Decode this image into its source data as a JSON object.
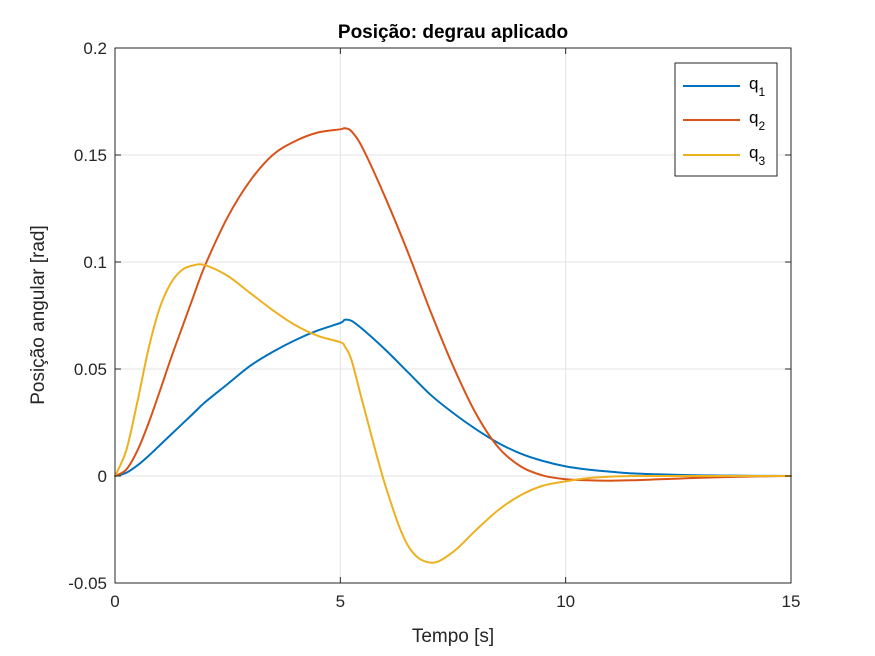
{
  "chart_data": {
    "type": "line",
    "title": "Posição: degrau aplicado",
    "xlabel": "Tempo [s]",
    "ylabel": "Posição angular [rad]",
    "xlim": [
      0,
      15
    ],
    "ylim": [
      -0.05,
      0.2
    ],
    "xticks": [
      0,
      5,
      10,
      15
    ],
    "xtick_labels": [
      "0",
      "5",
      "10",
      "15"
    ],
    "yticks": [
      -0.05,
      0,
      0.05,
      0.1,
      0.15,
      0.2
    ],
    "ytick_labels": [
      "-0.05",
      "0",
      "0.05",
      "0.1",
      "0.15",
      "0.2"
    ],
    "grid": true,
    "legend_position": "top-right",
    "series": [
      {
        "name": "q1",
        "name_base": "q",
        "name_sub": "1",
        "color": "#0072BD",
        "x": [
          0,
          0.25,
          0.5,
          0.75,
          1,
          1.25,
          1.5,
          1.75,
          2,
          2.5,
          3,
          3.5,
          4,
          4.5,
          5,
          5.1,
          5.25,
          5.5,
          6,
          6.5,
          7,
          7.5,
          8,
          8.5,
          9,
          9.5,
          10,
          10.5,
          11,
          11.5,
          12,
          12.5,
          13,
          13.5,
          14,
          14.5,
          15
        ],
        "y": [
          0,
          0.0015,
          0.005,
          0.0095,
          0.0145,
          0.0195,
          0.0245,
          0.0295,
          0.0345,
          0.043,
          0.0515,
          0.058,
          0.0635,
          0.068,
          0.0715,
          0.073,
          0.0725,
          0.0685,
          0.059,
          0.0485,
          0.038,
          0.0295,
          0.022,
          0.0155,
          0.0105,
          0.007,
          0.0045,
          0.003,
          0.002,
          0.0012,
          0.0008,
          0.0005,
          0.0003,
          0.0002,
          0.0001,
          5e-05,
          0
        ]
      },
      {
        "name": "q2",
        "name_base": "q",
        "name_sub": "2",
        "color": "#D95319",
        "x": [
          0,
          0.25,
          0.5,
          0.75,
          1,
          1.25,
          1.5,
          1.75,
          2,
          2.5,
          3,
          3.5,
          4,
          4.5,
          5,
          5.1,
          5.25,
          5.5,
          6,
          6.5,
          7,
          7.5,
          8,
          8.5,
          9,
          9.5,
          10,
          10.5,
          11,
          11.5,
          12,
          12.5,
          13,
          13.5,
          14,
          14.5,
          15
        ],
        "y": [
          0,
          0.003,
          0.012,
          0.025,
          0.04,
          0.0555,
          0.07,
          0.0845,
          0.0985,
          0.121,
          0.138,
          0.15,
          0.1565,
          0.1605,
          0.162,
          0.1625,
          0.161,
          0.153,
          0.13,
          0.1045,
          0.077,
          0.0515,
          0.0295,
          0.0135,
          0.0045,
          0.0002,
          -0.0015,
          -0.002,
          -0.0022,
          -0.002,
          -0.0016,
          -0.0012,
          -0.0008,
          -0.0005,
          -0.0003,
          -0.0001,
          0
        ]
      },
      {
        "name": "q3",
        "name_base": "q",
        "name_sub": "3",
        "color": "#EDB120",
        "x": [
          0,
          0.25,
          0.5,
          0.75,
          1,
          1.25,
          1.5,
          1.75,
          2,
          2.5,
          3,
          3.5,
          4,
          4.5,
          5,
          5.1,
          5.25,
          5.5,
          6,
          6.5,
          7,
          7.5,
          8,
          8.5,
          9,
          9.5,
          10,
          10.5,
          11,
          11.5,
          12,
          12.5,
          13,
          13.5,
          14,
          14.5,
          15
        ],
        "y": [
          0,
          0.012,
          0.035,
          0.06,
          0.079,
          0.0905,
          0.0965,
          0.0985,
          0.0985,
          0.0935,
          0.0855,
          0.0775,
          0.0705,
          0.0655,
          0.0625,
          0.0605,
          0.054,
          0.034,
          -0.0045,
          -0.0325,
          -0.0405,
          -0.0355,
          -0.0255,
          -0.016,
          -0.009,
          -0.0045,
          -0.0025,
          -0.001,
          -0.0003,
          0,
          0,
          0,
          0,
          0,
          0,
          0,
          0
        ]
      }
    ]
  }
}
